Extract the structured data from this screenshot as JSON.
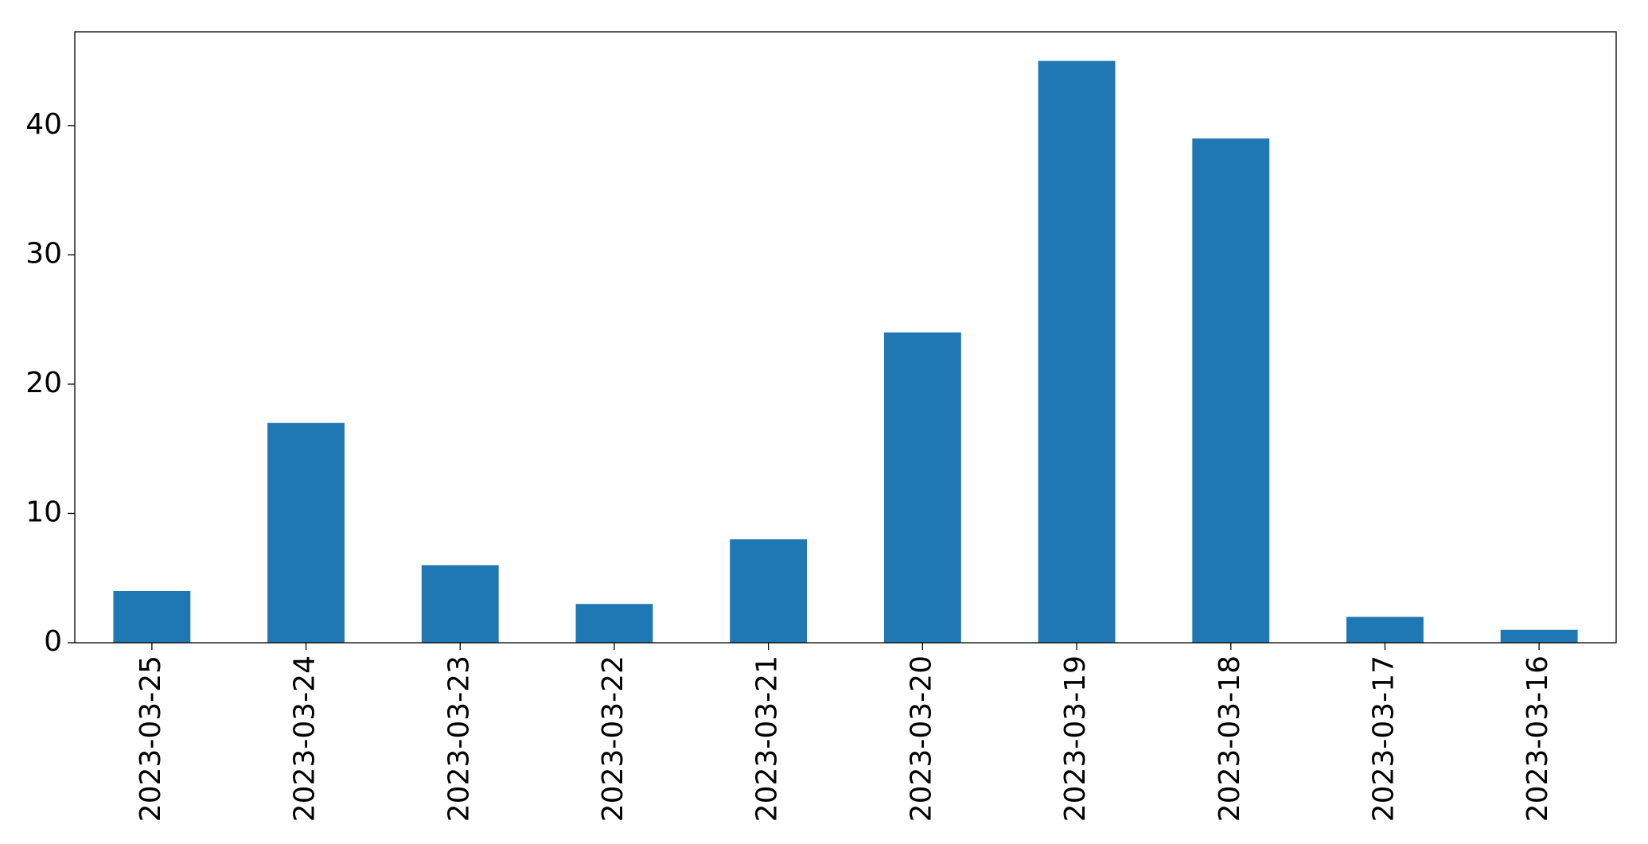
{
  "chart_data": {
    "type": "bar",
    "categories": [
      "2023-03-25",
      "2023-03-24",
      "2023-03-23",
      "2023-03-22",
      "2023-03-21",
      "2023-03-20",
      "2023-03-19",
      "2023-03-18",
      "2023-03-17",
      "2023-03-16"
    ],
    "values": [
      4,
      17,
      6,
      3,
      8,
      24,
      45,
      39,
      2,
      1
    ],
    "color": "#1f77b4",
    "ylim": [
      0,
      47.25
    ],
    "yticks": [
      0,
      10,
      20,
      30,
      40
    ],
    "grid": false
  }
}
